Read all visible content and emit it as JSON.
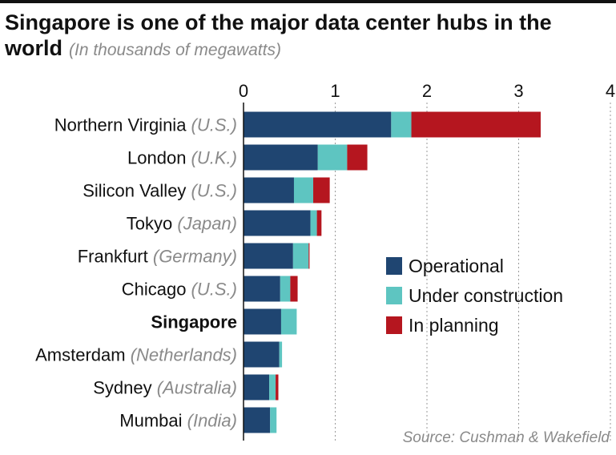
{
  "chart_data": {
    "type": "bar",
    "orientation": "horizontal",
    "stacked": true,
    "title": "Singapore is one of the major data center hubs in the world",
    "subtitle": "(In thousands of megawatts)",
    "source": "Source: Cushman & Wakefield",
    "xlim": [
      0,
      4
    ],
    "xticks": [
      "0",
      "1",
      "2",
      "3",
      "4"
    ],
    "grid": true,
    "legend_position": "middle-right",
    "categories": [
      {
        "name": "Northern Virginia",
        "region": "(U.S.)",
        "bold": false
      },
      {
        "name": "London",
        "region": "(U.K.)",
        "bold": false
      },
      {
        "name": "Silicon Valley",
        "region": "(U.S.)",
        "bold": false
      },
      {
        "name": "Tokyo",
        "region": "(Japan)",
        "bold": false
      },
      {
        "name": "Frankfurt",
        "region": "(Germany)",
        "bold": false
      },
      {
        "name": "Chicago",
        "region": "(U.S.)",
        "bold": false
      },
      {
        "name": "Singapore",
        "region": "",
        "bold": true
      },
      {
        "name": "Amsterdam",
        "region": "(Netherlands)",
        "bold": false
      },
      {
        "name": "Sydney",
        "region": "(Australia)",
        "bold": false
      },
      {
        "name": "Mumbai",
        "region": "(India)",
        "bold": false
      }
    ],
    "series": [
      {
        "name": "Operational",
        "color": "#1f4571",
        "values": [
          1.61,
          0.81,
          0.55,
          0.73,
          0.54,
          0.4,
          0.41,
          0.39,
          0.28,
          0.29
        ]
      },
      {
        "name": "Under construction",
        "color": "#5ec5c1",
        "values": [
          0.22,
          0.32,
          0.21,
          0.07,
          0.17,
          0.11,
          0.17,
          0.03,
          0.07,
          0.07
        ]
      },
      {
        "name": "In planning",
        "color": "#b5161f",
        "values": [
          1.41,
          0.22,
          0.18,
          0.05,
          0.01,
          0.08,
          0.0,
          0.0,
          0.03,
          0.0
        ]
      }
    ]
  }
}
